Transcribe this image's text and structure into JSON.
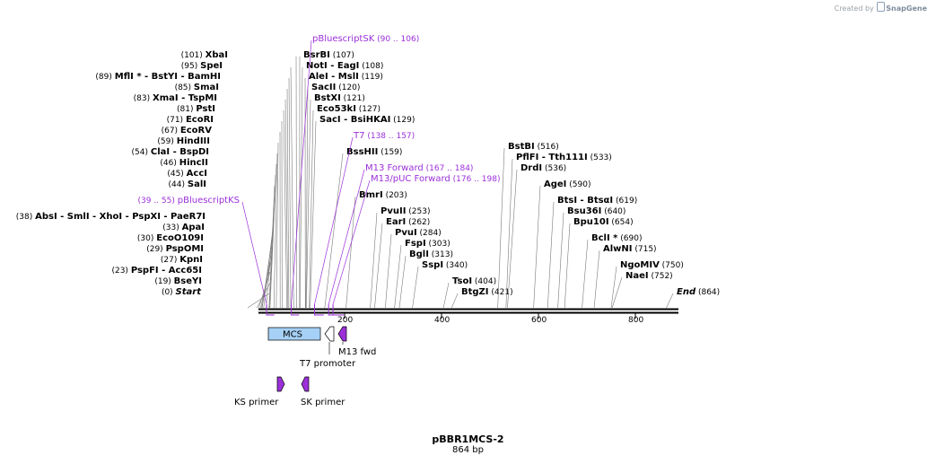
{
  "credit": {
    "prefix": "Created by",
    "brand": "SnapGene"
  },
  "plasmid": {
    "name": "pBBR1MCS-2",
    "size": "864 bp"
  },
  "ruler": [
    "200",
    "400",
    "600",
    "800"
  ],
  "colors": {
    "primer": "#9b30d9",
    "mcs_fill": "#a6d0f5",
    "feature_arrow": "#9b30d9",
    "backbone": "#000000"
  },
  "sites": [
    {
      "name": "Start",
      "pos": "(0)",
      "italic": true
    },
    {
      "name": "BseYI",
      "pos": "(19)"
    },
    {
      "name": "PspFI",
      "pos": "(23)",
      "extra": "Acc65I"
    },
    {
      "name": "KpnI",
      "pos": "(27)"
    },
    {
      "name": "PspOMI",
      "pos": "(29)"
    },
    {
      "name": "EcoO109I",
      "pos": "(30)"
    },
    {
      "name": "ApaI",
      "pos": "(33)"
    },
    {
      "name": "AbsI",
      "pos": "(38)",
      "extra": "SmlI - XhoI - PspXI - PaeR7I"
    },
    {
      "name": "SalI",
      "pos": "(44)"
    },
    {
      "name": "AccI",
      "pos": "(45)"
    },
    {
      "name": "HincII",
      "pos": "(46)"
    },
    {
      "name": "ClaI",
      "pos": "(54)",
      "extra": "BspDI"
    },
    {
      "name": "HindIII",
      "pos": "(59)"
    },
    {
      "name": "EcoRV",
      "pos": "(67)"
    },
    {
      "name": "EcoRI",
      "pos": "(71)"
    },
    {
      "name": "PstI",
      "pos": "(81)"
    },
    {
      "name": "XmaI",
      "pos": "(83)",
      "extra": "TspMI"
    },
    {
      "name": "SmaI",
      "pos": "(85)"
    },
    {
      "name": "MflI *",
      "pos": "(89)",
      "extra": "BstYI - BamHI"
    },
    {
      "name": "SpeI",
      "pos": "(95)"
    },
    {
      "name": "XbaI",
      "pos": "(101)"
    },
    {
      "name": "BsrBI",
      "pos": "(107)"
    },
    {
      "name": "NotI",
      "pos": "(108)",
      "extra": "EagI"
    },
    {
      "name": "AleI",
      "pos": "(119)",
      "extra": "MslI"
    },
    {
      "name": "SacII",
      "pos": "(120)"
    },
    {
      "name": "BstXI",
      "pos": "(121)"
    },
    {
      "name": "Eco53kI",
      "pos": "(127)"
    },
    {
      "name": "SacI",
      "pos": "(129)",
      "extra": "BsiHKAI"
    },
    {
      "name": "BssHII",
      "pos": "(159)"
    },
    {
      "name": "BmrI",
      "pos": "(203)"
    },
    {
      "name": "PvuII",
      "pos": "(253)"
    },
    {
      "name": "EarI",
      "pos": "(262)"
    },
    {
      "name": "PvuI",
      "pos": "(284)"
    },
    {
      "name": "FspI",
      "pos": "(303)"
    },
    {
      "name": "BglI",
      "pos": "(313)"
    },
    {
      "name": "SspI",
      "pos": "(340)"
    },
    {
      "name": "TsoI",
      "pos": "(404)"
    },
    {
      "name": "BtgZI",
      "pos": "(421)"
    },
    {
      "name": "BstBI",
      "pos": "(516)"
    },
    {
      "name": "PflFI",
      "pos": "(533)",
      "extra": "Tth111I"
    },
    {
      "name": "DrdI",
      "pos": "(536)"
    },
    {
      "name": "AgeI",
      "pos": "(590)"
    },
    {
      "name": "BtsI",
      "pos": "(619)",
      "extra": "BtsαI"
    },
    {
      "name": "Bsu36I",
      "pos": "(640)"
    },
    {
      "name": "Bpu10I",
      "pos": "(654)"
    },
    {
      "name": "BclI *",
      "pos": "(690)"
    },
    {
      "name": "AlwNI",
      "pos": "(715)"
    },
    {
      "name": "NgoMIV",
      "pos": "(750)"
    },
    {
      "name": "NaeI",
      "pos": "(752)"
    },
    {
      "name": "End",
      "pos": "(864)",
      "italic": true
    }
  ],
  "primer_sites": [
    {
      "name": "pBluescriptKS",
      "range": "(39 .. 55)"
    },
    {
      "name": "pBluescriptSK",
      "range": "(90 .. 106)"
    },
    {
      "name": "T7",
      "range": "(138 .. 157)"
    },
    {
      "name": "M13 Forward",
      "range": "(167 .. 184)"
    },
    {
      "name": "M13/pUC Forward",
      "range": "(176 .. 198)"
    }
  ],
  "features": {
    "mcs": "MCS",
    "t7_promoter": "T7 promoter",
    "m13_fwd": "M13 fwd",
    "ks_primer": "KS primer",
    "sk_primer": "SK primer"
  }
}
